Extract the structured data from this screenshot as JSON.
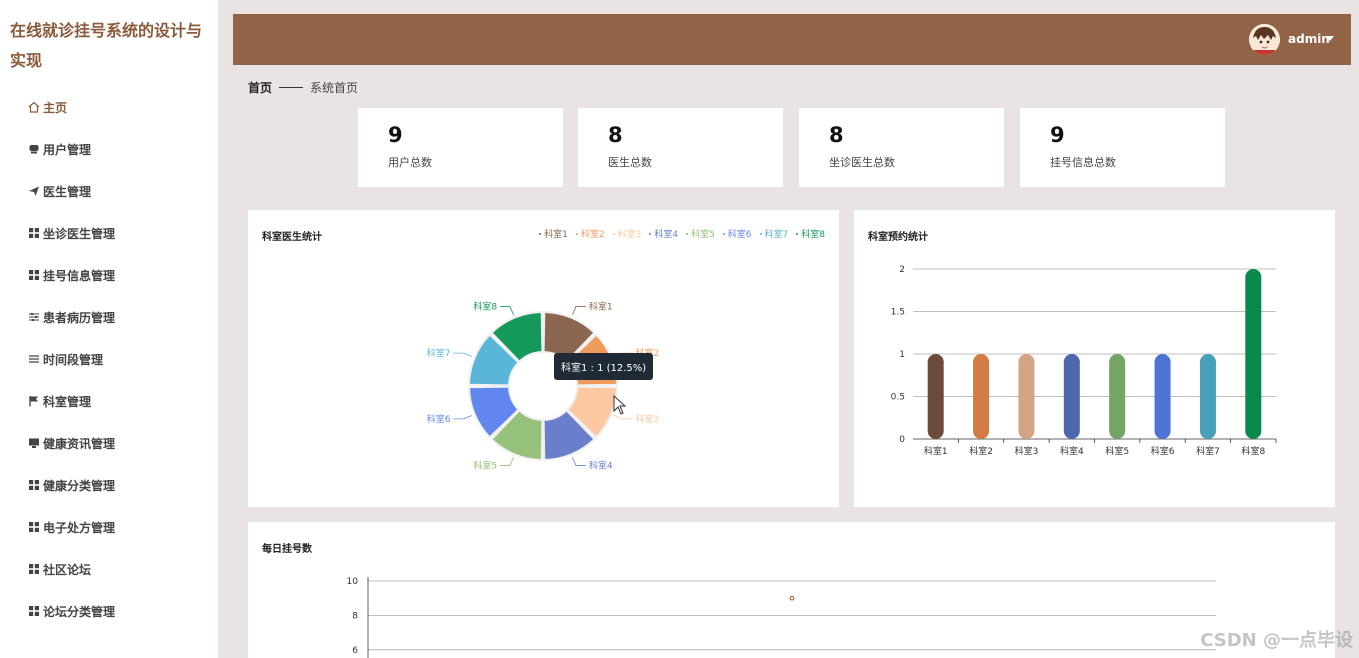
{
  "app": {
    "title": "在线就诊挂号系统的设计与实现"
  },
  "sidebar": {
    "items": [
      {
        "label": "主页",
        "icon": "home-icon"
      },
      {
        "label": "用户管理",
        "icon": "user-icon"
      },
      {
        "label": "医生管理",
        "icon": "send-icon"
      },
      {
        "label": "坐诊医生管理",
        "icon": "grid-icon"
      },
      {
        "label": "挂号信息管理",
        "icon": "grid-icon"
      },
      {
        "label": "患者病历管理",
        "icon": "sliders-icon"
      },
      {
        "label": "时间段管理",
        "icon": "list-icon"
      },
      {
        "label": "科室管理",
        "icon": "flag-icon"
      },
      {
        "label": "健康资讯管理",
        "icon": "monitor-icon"
      },
      {
        "label": "健康分类管理",
        "icon": "grid-icon"
      },
      {
        "label": "电子处方管理",
        "icon": "grid-icon"
      },
      {
        "label": "社区论坛",
        "icon": "grid-icon"
      },
      {
        "label": "论坛分类管理",
        "icon": "grid-icon"
      }
    ]
  },
  "header": {
    "username": "admin"
  },
  "breadcrumb": {
    "home": "首页",
    "current": "系统首页"
  },
  "stats": [
    {
      "value": "9",
      "label": "用户总数"
    },
    {
      "value": "8",
      "label": "医生总数"
    },
    {
      "value": "8",
      "label": "坐诊医生总数"
    },
    {
      "value": "9",
      "label": "挂号信息总数"
    }
  ],
  "colors": {
    "accent": "#916347",
    "series": [
      "#8b6650",
      "#f09a5c",
      "#fcc9a3",
      "#6a7fcb",
      "#95c17a",
      "#6286f0",
      "#59b6d9",
      "#14995a"
    ],
    "bars": [
      "#6c4a3b",
      "#d27b45",
      "#d4a585",
      "#4e68b0",
      "#74a567",
      "#4b74d4",
      "#47a0b8",
      "#0a8a4a"
    ]
  },
  "panels": {
    "pie_title": "科室医生统计",
    "bar_title": "科室预约统计",
    "line_title": "每日挂号数"
  },
  "tooltip": {
    "text": "科室1 : 1 (12.5%)"
  },
  "watermark": "CSDN @一点毕设",
  "chart_data": [
    {
      "type": "pie",
      "title": "科室医生统计",
      "categories": [
        "科室1",
        "科室2",
        "科室3",
        "科室4",
        "科室5",
        "科室6",
        "科室7",
        "科室8"
      ],
      "values": [
        1,
        1,
        1,
        1,
        1,
        1,
        1,
        1
      ],
      "legend": "top-right"
    },
    {
      "type": "bar",
      "title": "科室预约统计",
      "categories": [
        "科室1",
        "科室2",
        "科室3",
        "科室4",
        "科室5",
        "科室6",
        "科室7",
        "科室8"
      ],
      "values": [
        1,
        1,
        1,
        1,
        1,
        1,
        1,
        2
      ],
      "ylim": [
        0,
        2
      ],
      "yticks": [
        "0",
        "0.5",
        "1",
        "1.5",
        "2"
      ],
      "grid": true
    },
    {
      "type": "line",
      "title": "每日挂号数",
      "yticks": [
        "6",
        "8",
        "10"
      ],
      "points": [
        {
          "y": 9
        }
      ],
      "grid": true
    }
  ]
}
